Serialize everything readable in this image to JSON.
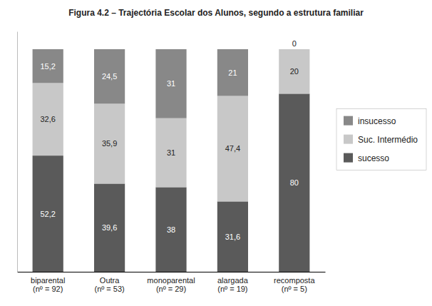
{
  "chart_data": {
    "type": "bar",
    "stacked": true,
    "data_labels": true,
    "tick_labels": "x",
    "grid": false,
    "legend": "right",
    "title": "Figura 4.2 – Trajectória Escolar dos Alunos, segundo a estrutura familiar",
    "categories": [
      "biparental\n(nº = 92)",
      "Outra\n(nº = 53)",
      "monoparental\n(nº = 29)",
      "alargada\n(nº = 19)",
      "recomposta\n(nº = 5)"
    ],
    "ylim": [
      0,
      108
    ],
    "series": [
      {
        "name": "sucesso",
        "color": "#5a5a5a",
        "values": [
          52.2,
          39.6,
          38.0,
          31.6,
          80.0
        ],
        "value_labels": [
          "52,2",
          "39,6",
          "38",
          "31,6",
          "80"
        ]
      },
      {
        "name": "Suc. Intermédio",
        "color": "#c8c8c8",
        "values": [
          32.6,
          35.9,
          31.0,
          47.4,
          20.0
        ],
        "value_labels": [
          "32,6",
          "35,9",
          "31",
          "47,4",
          "20"
        ]
      },
      {
        "name": "insucesso",
        "color": "#888888",
        "values": [
          15.2,
          24.5,
          31.0,
          21.0,
          0.0
        ],
        "value_labels": [
          "15,2",
          "24,5",
          "31",
          "21",
          "0"
        ]
      }
    ]
  }
}
